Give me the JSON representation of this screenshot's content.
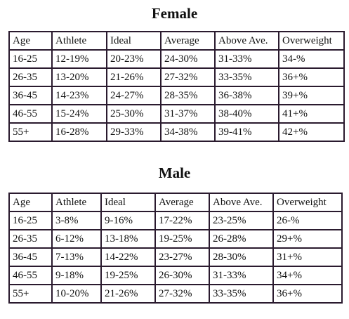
{
  "female": {
    "title": "Female",
    "headers": [
      "Age",
      "Athlete",
      "Ideal",
      "Average",
      "Above Ave.",
      "Overweight"
    ],
    "rows": [
      [
        "16-25",
        "12-19%",
        "20-23%",
        "24-30%",
        "31-33%",
        "34-%"
      ],
      [
        "26-35",
        "13-20%",
        "21-26%",
        "27-32%",
        "33-35%",
        "36+%"
      ],
      [
        "36-45",
        "14-23%",
        "24-27%",
        "28-35%",
        "36-38%",
        "39+%"
      ],
      [
        "46-55",
        "15-24%",
        "25-30%",
        "31-37%",
        "38-40%",
        "41+%"
      ],
      [
        "55+",
        "16-28%",
        "29-33%",
        "34-38%",
        "39-41%",
        "42+%"
      ]
    ]
  },
  "male": {
    "title": "Male",
    "headers": [
      "Age",
      "Athlete",
      "Ideal",
      "Average",
      "Above Ave.",
      "Overweight"
    ],
    "rows": [
      [
        "16-25",
        "3-8%",
        "9-16%",
        "17-22%",
        "23-25%",
        "26-%"
      ],
      [
        "26-35",
        "6-12%",
        "13-18%",
        "19-25%",
        "26-28%",
        "29+%"
      ],
      [
        "36-45",
        "7-13%",
        "14-22%",
        "23-27%",
        "28-30%",
        "31+%"
      ],
      [
        "46-55",
        "9-18%",
        "19-25%",
        "26-30%",
        "31-33%",
        "34+%"
      ],
      [
        "55+",
        "10-20%",
        "21-26%",
        "27-32%",
        "33-35%",
        "36+%"
      ]
    ]
  }
}
